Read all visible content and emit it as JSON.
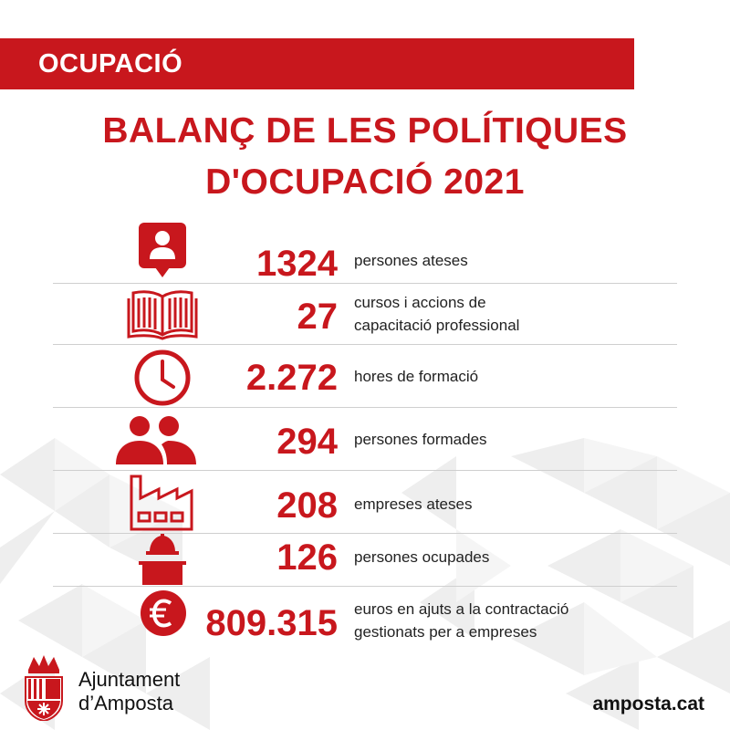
{
  "header": {
    "category": "OCUPACIÓ"
  },
  "title": {
    "line1": "BALANÇ DE LES POLÍTIQUES",
    "line2": "D'OCUPACIÓ 2021"
  },
  "stats": [
    {
      "icon": "person-badge-icon",
      "value": "1324",
      "label_line1": "persones ateses",
      "label_line2": ""
    },
    {
      "icon": "open-book-icon",
      "value": "27",
      "label_line1": "cursos i accions de",
      "label_line2": "capacitació professional"
    },
    {
      "icon": "clock-icon",
      "value": "2.272",
      "label_line1": "hores de formació",
      "label_line2": ""
    },
    {
      "icon": "people-group-icon",
      "value": "294",
      "label_line1": "persones formades",
      "label_line2": ""
    },
    {
      "icon": "factory-icon",
      "value": "208",
      "label_line1": "empreses ateses",
      "label_line2": ""
    },
    {
      "icon": "worker-helmet-icon",
      "value": "126",
      "label_line1": "persones ocupades",
      "label_line2": ""
    },
    {
      "icon": "euro-coin-icon",
      "value": "809.315",
      "label_line1": "euros en ajuts a la contractació",
      "label_line2": "gestionats per a empreses"
    }
  ],
  "footer": {
    "org_line1": "Ajuntament",
    "org_line2": "d’Amposta",
    "website": "amposta.cat"
  },
  "colors": {
    "accent": "#c8171d",
    "text": "#222222",
    "separator": "#cfcfcf"
  }
}
